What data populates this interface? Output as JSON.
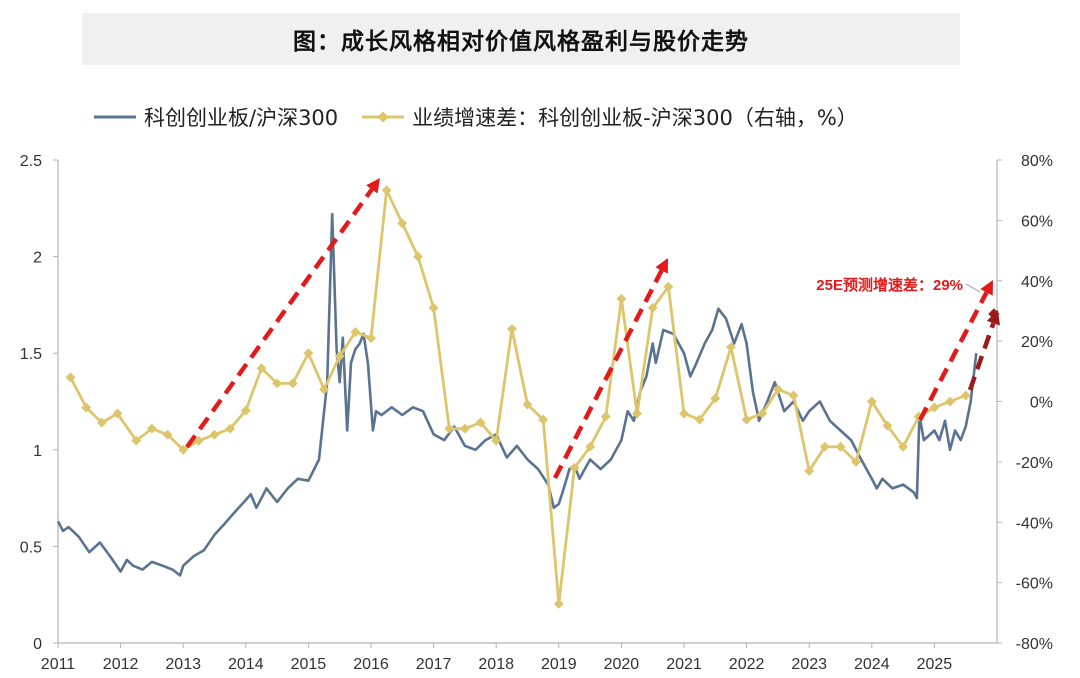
{
  "title": "图：成长风格相对价值风格盈利与股价走势",
  "chart_data": {
    "type": "line",
    "title": "图：成长风格相对价值风格盈利与股价走势",
    "x_ticks": [
      "2011",
      "2012",
      "2013",
      "2014",
      "2015",
      "2016",
      "2017",
      "2018",
      "2019",
      "2020",
      "2021",
      "2022",
      "2023",
      "2024",
      "2025"
    ],
    "left_axis": {
      "ticks": [
        "0",
        "0.5",
        "1",
        "1.5",
        "2",
        "2.5"
      ],
      "range": [
        0,
        2.5
      ]
    },
    "right_axis": {
      "ticks": [
        "-80%",
        "-60%",
        "-40%",
        "-20%",
        "0%",
        "20%",
        "40%",
        "60%",
        "80%"
      ],
      "range": [
        -80,
        80
      ]
    },
    "colors": {
      "ratio": "#5a7390",
      "growth": "#dcc56a",
      "arrow": "#e21a1a",
      "dark_arrow": "#9b1b1b"
    },
    "series": [
      {
        "name": "科创创业板/沪深300",
        "axis": "left",
        "x": [
          2011.0,
          2011.08,
          2011.17,
          2011.33,
          2011.5,
          2011.67,
          2011.83,
          2012.0,
          2012.1,
          2012.2,
          2012.35,
          2012.5,
          2012.67,
          2012.83,
          2012.95,
          2013.0,
          2013.17,
          2013.33,
          2013.5,
          2013.67,
          2013.83,
          2014.0,
          2014.08,
          2014.17,
          2014.33,
          2014.5,
          2014.67,
          2014.83,
          2015.0,
          2015.17,
          2015.3,
          2015.38,
          2015.45,
          2015.5,
          2015.55,
          2015.62,
          2015.68,
          2015.75,
          2015.82,
          2015.88,
          2015.95,
          2016.03,
          2016.08,
          2016.17,
          2016.33,
          2016.5,
          2016.67,
          2016.83,
          2017.0,
          2017.17,
          2017.33,
          2017.5,
          2017.67,
          2017.83,
          2018.0,
          2018.17,
          2018.33,
          2018.5,
          2018.67,
          2018.83,
          2018.92,
          2019.0,
          2019.08,
          2019.17,
          2019.25,
          2019.33,
          2019.5,
          2019.67,
          2019.83,
          2020.0,
          2020.1,
          2020.2,
          2020.3,
          2020.4,
          2020.5,
          2020.55,
          2020.67,
          2020.83,
          2021.0,
          2021.1,
          2021.2,
          2021.33,
          2021.45,
          2021.55,
          2021.67,
          2021.8,
          2021.92,
          2022.0,
          2022.1,
          2022.2,
          2022.33,
          2022.45,
          2022.6,
          2022.75,
          2022.9,
          2023.0,
          2023.17,
          2023.33,
          2023.5,
          2023.67,
          2023.83,
          2024.0,
          2024.08,
          2024.17,
          2024.33,
          2024.5,
          2024.67,
          2024.72,
          2024.76,
          2024.83,
          2025.0,
          2025.08,
          2025.17,
          2025.25,
          2025.33,
          2025.42,
          2025.5,
          2025.58,
          2025.67
        ],
        "values": [
          0.63,
          0.58,
          0.6,
          0.55,
          0.47,
          0.52,
          0.45,
          0.37,
          0.43,
          0.4,
          0.38,
          0.42,
          0.4,
          0.38,
          0.35,
          0.4,
          0.45,
          0.48,
          0.56,
          0.62,
          0.68,
          0.74,
          0.77,
          0.7,
          0.8,
          0.73,
          0.8,
          0.85,
          0.84,
          0.95,
          1.35,
          2.22,
          1.52,
          1.35,
          1.58,
          1.1,
          1.45,
          1.52,
          1.55,
          1.6,
          1.45,
          1.1,
          1.2,
          1.18,
          1.22,
          1.18,
          1.22,
          1.2,
          1.08,
          1.05,
          1.12,
          1.02,
          1.0,
          1.05,
          1.08,
          0.96,
          1.02,
          0.95,
          0.9,
          0.82,
          0.7,
          0.72,
          0.8,
          0.9,
          0.92,
          0.85,
          0.95,
          0.9,
          0.95,
          1.05,
          1.2,
          1.15,
          1.3,
          1.38,
          1.55,
          1.45,
          1.62,
          1.6,
          1.5,
          1.38,
          1.45,
          1.55,
          1.62,
          1.73,
          1.68,
          1.55,
          1.65,
          1.55,
          1.3,
          1.15,
          1.25,
          1.35,
          1.2,
          1.25,
          1.15,
          1.2,
          1.25,
          1.15,
          1.1,
          1.05,
          0.95,
          0.85,
          0.8,
          0.85,
          0.8,
          0.82,
          0.78,
          0.75,
          1.18,
          1.05,
          1.1,
          1.05,
          1.15,
          1.0,
          1.1,
          1.05,
          1.12,
          1.25,
          1.5
        ]
      },
      {
        "name": "业绩增速差：科创创业板-沪深300（右轴，%）",
        "axis": "right",
        "x": [
          2011.2,
          2011.45,
          2011.7,
          2011.95,
          2012.25,
          2012.5,
          2012.75,
          2013.0,
          2013.25,
          2013.5,
          2013.75,
          2014.0,
          2014.25,
          2014.5,
          2014.75,
          2015.0,
          2015.25,
          2015.5,
          2015.75,
          2016.0,
          2016.25,
          2016.5,
          2016.75,
          2017.0,
          2017.25,
          2017.5,
          2017.75,
          2018.0,
          2018.25,
          2018.5,
          2018.75,
          2019.0,
          2019.25,
          2019.5,
          2019.75,
          2020.0,
          2020.25,
          2020.5,
          2020.75,
          2021.0,
          2021.25,
          2021.5,
          2021.75,
          2022.0,
          2022.25,
          2022.5,
          2022.75,
          2023.0,
          2023.25,
          2023.5,
          2023.75,
          2024.0,
          2024.25,
          2024.5,
          2024.75,
          2025.0,
          2025.25,
          2025.5
        ],
        "values": [
          8,
          -2,
          -7,
          -4,
          -13,
          -9,
          -11,
          -16,
          -13,
          -11,
          -9,
          -3,
          11,
          6,
          6,
          16,
          4,
          15,
          23,
          21,
          70,
          59,
          48,
          31,
          -9,
          -9,
          -7,
          -13,
          24,
          -1,
          -6,
          -67,
          -22,
          -15,
          -5,
          34,
          -4,
          31,
          38,
          -4,
          -6,
          1,
          18,
          -6,
          -4,
          4,
          2,
          -23,
          -15,
          -15,
          -20,
          0,
          -8,
          -15,
          -5,
          -2,
          0,
          2
        ]
      }
    ],
    "annotation": "25E预测增速差：29%",
    "forecast_point": {
      "x": 2025.95,
      "value": 29
    }
  }
}
